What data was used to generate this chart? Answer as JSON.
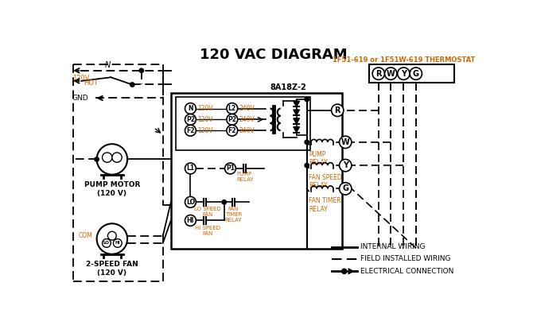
{
  "title": "120 VAC DIAGRAM",
  "title_color": "#000000",
  "background_color": "#ffffff",
  "line_color": "#000000",
  "orange_color": "#cc6600",
  "thermostat_label": "1F51-619 or 1F51W-619 THERMOSTAT",
  "box_label": "8A18Z-2",
  "terminal_labels": [
    "R",
    "W",
    "Y",
    "G"
  ],
  "pump_motor_label": "PUMP MOTOR\n(120 V)",
  "fan_label": "2-SPEED FAN\n(120 V)"
}
